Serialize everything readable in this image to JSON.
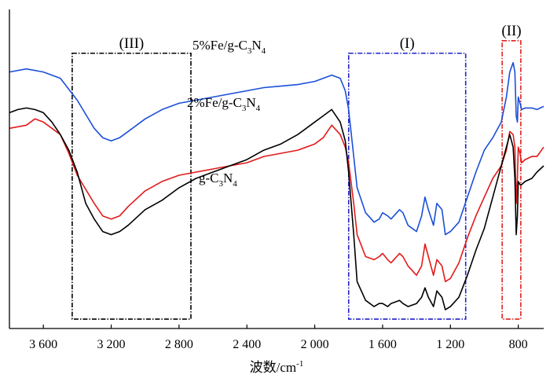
{
  "chart_data": {
    "type": "line",
    "title": "",
    "xlabel": "波数/cm",
    "xlabel_sup": "-1",
    "ylabel": "",
    "xlim": [
      3800,
      650
    ],
    "x_reversed": true,
    "x_ticks": [
      3600,
      3200,
      2800,
      2400,
      2000,
      1600,
      1200,
      800
    ],
    "x_tick_labels": [
      "3 600",
      "3 200",
      "2 800",
      "2 400",
      "2 000",
      "1 600",
      "1 200",
      "800"
    ],
    "ylim": [
      0,
      100
    ],
    "y_ticks_shown": false,
    "grid": false,
    "regions": [
      {
        "label": "(III)",
        "x_range": [
          3430,
          2730
        ],
        "y_range": [
          3,
          88
        ],
        "color": "#000000"
      },
      {
        "label": "(I)",
        "x_range": [
          1800,
          1110
        ],
        "y_range": [
          3,
          88
        ],
        "color": "#2020c8"
      },
      {
        "label": "(II)",
        "x_range": [
          895,
          785
        ],
        "y_range": [
          3,
          92
        ],
        "color": "#e02020"
      }
    ],
    "series": [
      {
        "name": "5%Fe/g-C3N4",
        "label_parts": [
          "5%Fe/g-C",
          "3",
          "N",
          "4"
        ],
        "color": "#1a4fd8",
        "x": [
          3800,
          3700,
          3600,
          3500,
          3400,
          3300,
          3250,
          3200,
          3150,
          3100,
          3000,
          2900,
          2800,
          2700,
          2600,
          2500,
          2400,
          2300,
          2200,
          2100,
          2000,
          1950,
          1900,
          1850,
          1820,
          1800,
          1770,
          1750,
          1700,
          1650,
          1620,
          1600,
          1570,
          1550,
          1500,
          1480,
          1450,
          1400,
          1370,
          1350,
          1330,
          1300,
          1280,
          1250,
          1230,
          1200,
          1150,
          1100,
          1050,
          1000,
          950,
          900,
          870,
          850,
          830,
          820,
          812,
          805,
          800,
          790,
          780,
          760,
          720,
          690,
          650
        ],
        "y": [
          82,
          83,
          82,
          80,
          73,
          64,
          61,
          60,
          61,
          63,
          67,
          70,
          72,
          73,
          74,
          75,
          76,
          77,
          77.5,
          78,
          79,
          80,
          81,
          80,
          76,
          70,
          55,
          45,
          37,
          34,
          35,
          37,
          36,
          35,
          38,
          37,
          33,
          31,
          36,
          42,
          38,
          33,
          40,
          38,
          30,
          31,
          34,
          42,
          50,
          57,
          61,
          66,
          74,
          82,
          85,
          82,
          68,
          66,
          74,
          72,
          70,
          70.5,
          70.5,
          70,
          71
        ]
      },
      {
        "name": "2%Fe/g-C3N4",
        "label_parts": [
          "2%Fe/g-C",
          "3",
          "N",
          "4"
        ],
        "color": "#e21a1a",
        "x": [
          3800,
          3700,
          3650,
          3600,
          3500,
          3450,
          3400,
          3300,
          3250,
          3200,
          3150,
          3100,
          3000,
          2900,
          2800,
          2700,
          2600,
          2500,
          2400,
          2300,
          2200,
          2100,
          2000,
          1950,
          1900,
          1850,
          1820,
          1800,
          1770,
          1750,
          1700,
          1650,
          1620,
          1600,
          1570,
          1550,
          1500,
          1480,
          1450,
          1400,
          1370,
          1350,
          1330,
          1300,
          1280,
          1250,
          1230,
          1200,
          1150,
          1100,
          1050,
          1000,
          950,
          900,
          870,
          850,
          830,
          820,
          812,
          805,
          800,
          790,
          780,
          760,
          720,
          690,
          650
        ],
        "y": [
          64,
          65,
          67,
          66,
          62,
          56,
          49,
          40,
          36,
          35,
          36,
          39,
          44,
          47,
          49,
          50,
          51,
          52,
          53,
          55,
          56,
          57,
          59,
          61,
          65,
          62,
          58,
          53,
          40,
          30,
          23,
          22,
          23,
          24,
          22,
          21,
          24,
          23,
          20,
          17,
          20,
          27,
          23,
          17,
          22,
          20,
          15,
          16,
          21,
          29,
          36,
          42,
          48,
          52,
          57,
          63,
          62,
          58,
          40,
          48,
          58,
          56,
          53,
          54,
          55,
          55,
          58
        ]
      },
      {
        "name": "g-C3N4",
        "label_parts": [
          "g-C",
          "3",
          "N",
          "4"
        ],
        "color": "#000000",
        "x": [
          3800,
          3750,
          3700,
          3650,
          3600,
          3550,
          3500,
          3450,
          3400,
          3350,
          3300,
          3250,
          3200,
          3150,
          3100,
          3000,
          2900,
          2800,
          2700,
          2600,
          2500,
          2400,
          2300,
          2200,
          2100,
          2000,
          1950,
          1900,
          1850,
          1820,
          1800,
          1770,
          1750,
          1700,
          1650,
          1620,
          1600,
          1570,
          1550,
          1500,
          1480,
          1450,
          1400,
          1370,
          1350,
          1330,
          1300,
          1280,
          1250,
          1230,
          1200,
          1150,
          1100,
          1050,
          1000,
          950,
          900,
          870,
          850,
          830,
          820,
          812,
          805,
          800,
          790,
          780,
          760,
          720,
          690,
          650
        ],
        "y": [
          69,
          70,
          70.5,
          70,
          69,
          66,
          62,
          57,
          50,
          40,
          35,
          31,
          30,
          31,
          33,
          38,
          41,
          45,
          48,
          50,
          52,
          54,
          57,
          59,
          62,
          66,
          68,
          70,
          66,
          60,
          50,
          30,
          15,
          9,
          7,
          8,
          8,
          7,
          8,
          9,
          8,
          7,
          8,
          10,
          13,
          10,
          7,
          12,
          10,
          6,
          7,
          10,
          17,
          25,
          32,
          42,
          52,
          58,
          62,
          58,
          48,
          30,
          36,
          47,
          46,
          46,
          47,
          48,
          50,
          52
        ]
      }
    ]
  }
}
